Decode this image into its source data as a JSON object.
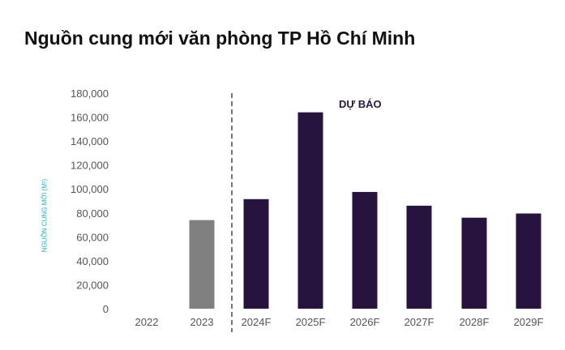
{
  "chart_data": {
    "type": "bar",
    "title": "Nguồn cung mới văn phòng TP Hồ Chí Minh",
    "ylabel": "NGUỒN CUNG MỚI (M²)",
    "xlabel": "",
    "categories": [
      "2022",
      "2023",
      "2024F",
      "2025F",
      "2026F",
      "2027F",
      "2028F",
      "2029F"
    ],
    "values": [
      0,
      74000,
      91500,
      164000,
      97500,
      86000,
      76000,
      79500
    ],
    "ylim": [
      0,
      180000
    ],
    "yticks": [
      "0",
      "20,000",
      "40,000",
      "60,000",
      "80,000",
      "100,000",
      "120,000",
      "140,000",
      "160,000",
      "180,000"
    ],
    "annotation": "DỰ BÁO",
    "colors": {
      "actual": "#808080",
      "forecast": "#26143f",
      "divider": "#555555",
      "ylabel": "#21aebd"
    },
    "grid": false,
    "legend": "none"
  }
}
